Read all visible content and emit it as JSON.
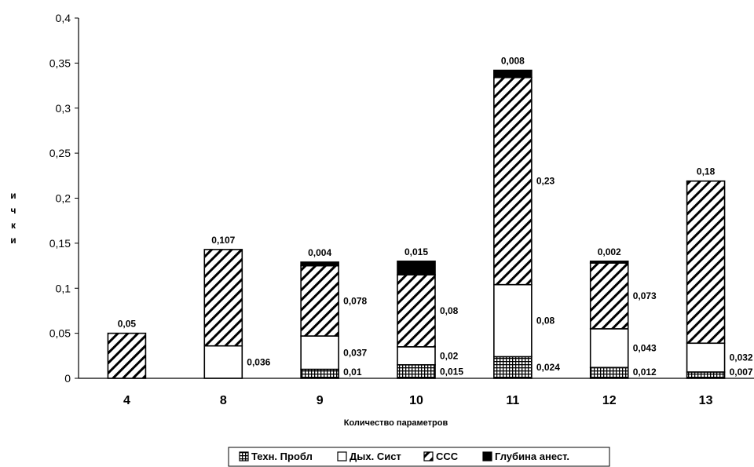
{
  "chart_data": {
    "type": "bar",
    "stacked": true,
    "categories": [
      "4",
      "8",
      "9",
      "10",
      "11",
      "12",
      "13"
    ],
    "series": [
      {
        "name": "Техн. Пробл",
        "values": [
          0,
          0,
          0.01,
          0.015,
          0.024,
          0.012,
          0.007
        ],
        "labels": [
          "",
          "",
          "0,01",
          "0,015",
          "0,024",
          "0,012",
          "0,007"
        ]
      },
      {
        "name": "Дых. Сист",
        "values": [
          0,
          0.036,
          0.037,
          0.02,
          0.08,
          0.043,
          0.032
        ],
        "labels": [
          "",
          "0,036",
          "0,037",
          "0,02",
          "0,08",
          "0,043",
          "0,032"
        ]
      },
      {
        "name": "ССС",
        "values": [
          0.05,
          0.107,
          0.078,
          0.08,
          0.23,
          0.073,
          0.18
        ],
        "labels": [
          "0,05",
          "0,107",
          "0,078",
          "0,08",
          "0,23",
          "0,073",
          "0,18"
        ]
      },
      {
        "name": "Глубина анест.",
        "values": [
          0,
          0,
          0.004,
          0.015,
          0.008,
          0.002,
          0
        ],
        "labels": [
          "",
          "",
          "0,004",
          "0,015",
          "0,008",
          "0,002",
          ""
        ]
      }
    ],
    "xlabel": "Количество параметров",
    "ylabel": [
      "и",
      "ч",
      "к",
      "и"
    ],
    "ylim": [
      0,
      0.4
    ],
    "yticks": [
      0,
      0.05,
      0.1,
      0.15,
      0.2,
      0.25,
      0.3,
      0.35,
      0.4
    ],
    "ytick_labels": [
      "0",
      "0,05",
      "0,1",
      "0,15",
      "0,2",
      "0,25",
      "0,3",
      "0,35",
      "0,4"
    ],
    "legend_position": "bottom",
    "grid": false
  }
}
